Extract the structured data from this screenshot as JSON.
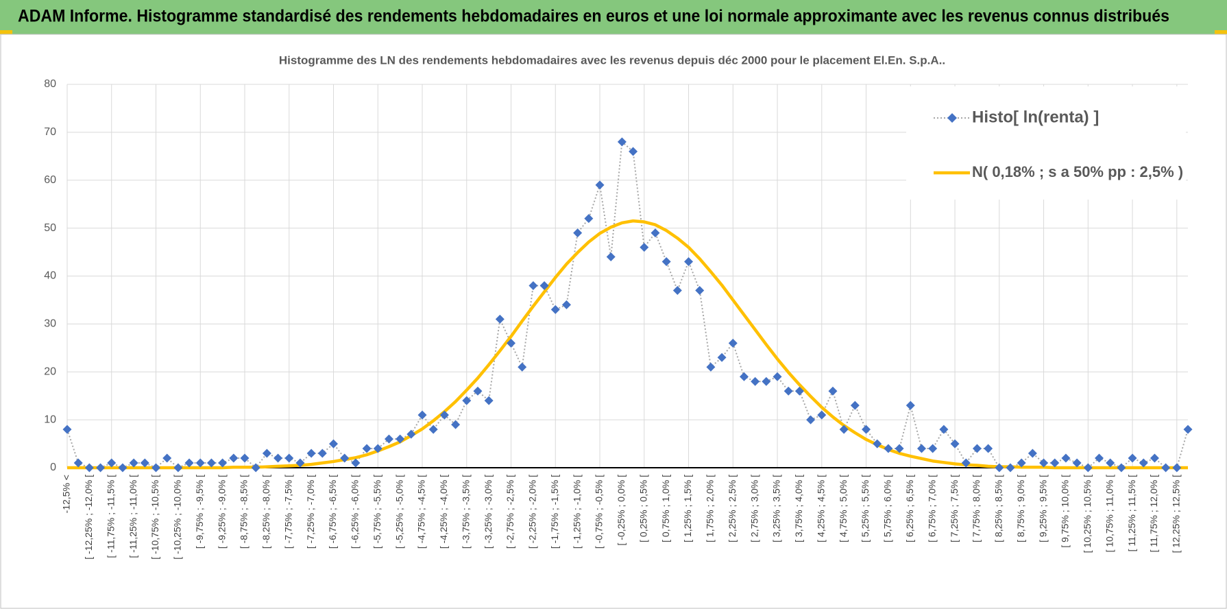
{
  "banner": "ADAM Informe. Histogramme standardisé des rendements hebdomadaires en euros et une loi normale approximante avec les revenus connus distribués",
  "chart_data": {
    "type": "line",
    "title": "Histogramme  des LN des rendements hebdomadaires avec les revenus depuis déc 2000 pour le placement El.En. S.p.A..",
    "categories": [
      "-12,5% <",
      null,
      "[ -12,25% ; -12,0% [",
      null,
      "[ -11,75% ; -11,5% [",
      null,
      "[ -11,25% ; -11,0% [",
      null,
      "[ -10,75% ; -10,5% [",
      null,
      "[ -10,25% ; -10,0% [",
      null,
      "[ -9,75% ; -9,5% [",
      null,
      "[ -9,25% ; -9,0% [",
      null,
      "[ -8,75% ; -8,5% [",
      null,
      "[ -8,25% ; -8,0% [",
      null,
      "[ -7,75% ; -7,5% [",
      null,
      "[ -7,25% ; -7,0% [",
      null,
      "[ -6,75% ; -6,5% [",
      null,
      "[ -6,25% ; -6,0% [",
      null,
      "[ -5,75% ; -5,5% [",
      null,
      "[ -5,25% ; -5,0% [",
      null,
      "[ -4,75% ; -4,5% [",
      null,
      "[ -4,25% ; -4,0% [",
      null,
      "[ -3,75% ; -3,5% [",
      null,
      "[ -3,25% ; -3,0% [",
      null,
      "[ -2,75% ; -2,5% [",
      null,
      "[ -2,25% ; -2,0% [",
      null,
      "[ -1,75% ; -1,5% [",
      null,
      "[ -1,25% ; -1,0% [",
      null,
      "[ -0,75% ; -0,5% [",
      null,
      "[ -0,25% ; 0,0% [",
      null,
      "[ 0,25% ; 0,5% [",
      null,
      "[ 0,75% ; 1,0% [",
      null,
      "[ 1,25% ; 1,5% [",
      null,
      "[ 1,75% ; 2,0% [",
      null,
      "[ 2,25% ; 2,5% [",
      null,
      "[ 2,75% ; 3,0% [",
      null,
      "[ 3,25% ; 3,5% [",
      null,
      "[ 3,75% ; 4,0% [",
      null,
      "[ 4,25% ; 4,5% [",
      null,
      "[ 4,75% ; 5,0% [",
      null,
      "[ 5,25% ; 5,5% [",
      null,
      "[ 5,75% ; 6,0% [",
      null,
      "[ 6,25% ; 6,5% [",
      null,
      "[ 6,75% ; 7,0% [",
      null,
      "[ 7,25% ; 7,5% [",
      null,
      "[ 7,75% ; 8,0% [",
      null,
      "[ 8,25% ; 8,5% [",
      null,
      "[ 8,75% ; 9,0% [",
      null,
      "[ 9,25% ; 9,5% [",
      null,
      "[ 9,75% ; 10,0% [",
      null,
      "[ 10,25% ; 10,5% [",
      null,
      "[ 10,75% ; 11,0% [",
      null,
      "[ 11,25% ; 11,5% [",
      null,
      "[ 11,75% ; 12,0% [",
      null,
      "[ 12,25% ; 12,5% [",
      null
    ],
    "series": [
      {
        "name": "Histo[ ln(renta) ]",
        "color": "#4472c4",
        "line_color": "#a6a6a6",
        "values": [
          8,
          1,
          0,
          0,
          1,
          0,
          1,
          1,
          0,
          2,
          0,
          1,
          1,
          1,
          1,
          2,
          2,
          0,
          3,
          2,
          2,
          1,
          3,
          3,
          5,
          2,
          1,
          4,
          4,
          6,
          6,
          7,
          11,
          8,
          11,
          9,
          14,
          16,
          14,
          31,
          26,
          21,
          38,
          38,
          33,
          34,
          49,
          52,
          59,
          44,
          68,
          66,
          46,
          49,
          43,
          37,
          43,
          37,
          21,
          23,
          26,
          19,
          18,
          18,
          19,
          16,
          16,
          10,
          11,
          16,
          8,
          13,
          8,
          5,
          4,
          4,
          13,
          4,
          4,
          8,
          5,
          1,
          4,
          4,
          0,
          0,
          1,
          3,
          1,
          1,
          2,
          1,
          0,
          2,
          1,
          0,
          2,
          1,
          2,
          0,
          0,
          8
        ]
      },
      {
        "name": "N( 0,18% ; s a 50% pp : 2,5% )",
        "color": "#ffc000",
        "values": [
          0,
          0,
          0,
          0,
          0,
          0,
          0,
          0,
          0,
          0,
          0,
          0,
          0,
          0,
          0,
          0.1,
          0.1,
          0.1,
          0.2,
          0.3,
          0.4,
          0.5,
          0.7,
          1.0,
          1.3,
          1.7,
          2.1,
          2.7,
          3.5,
          4.4,
          5.4,
          6.7,
          8.1,
          9.8,
          11.7,
          13.8,
          16.2,
          18.7,
          21.5,
          24.4,
          27.4,
          30.6,
          33.7,
          36.7,
          39.7,
          42.5,
          44.9,
          47.1,
          48.9,
          50.2,
          51.1,
          51.5,
          51.3,
          50.7,
          49.5,
          47.9,
          46.0,
          43.6,
          40.9,
          38.1,
          35.0,
          31.9,
          28.8,
          25.7,
          22.7,
          19.9,
          17.3,
          14.9,
          12.6,
          10.6,
          8.8,
          7.3,
          5.9,
          4.8,
          3.8,
          3.0,
          2.4,
          1.9,
          1.4,
          1.1,
          0.8,
          0.6,
          0.5,
          0.3,
          0.2,
          0.2,
          0.1,
          0.1,
          0.1,
          0,
          0,
          0,
          0,
          0,
          0,
          0,
          0,
          0,
          0,
          0,
          0,
          0
        ]
      }
    ],
    "ylim": [
      0,
      80
    ],
    "yticks": [
      0,
      10,
      20,
      30,
      40,
      50,
      60,
      70,
      80
    ],
    "grid": true,
    "legend": "top-right"
  }
}
